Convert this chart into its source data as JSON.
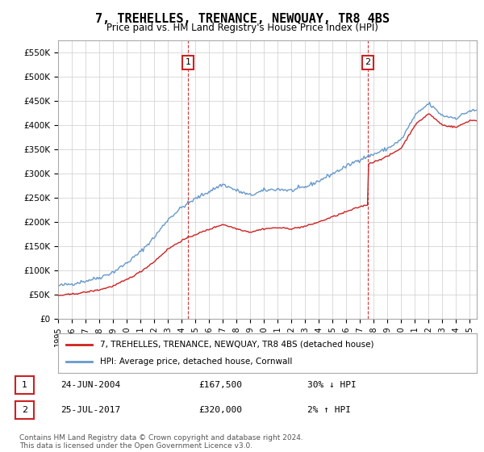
{
  "title": "7, TREHELLES, TRENANCE, NEWQUAY, TR8 4BS",
  "subtitle": "Price paid vs. HM Land Registry's House Price Index (HPI)",
  "yticks": [
    0,
    50000,
    100000,
    150000,
    200000,
    250000,
    300000,
    350000,
    400000,
    450000,
    500000,
    550000
  ],
  "ytick_labels": [
    "£0",
    "£50K",
    "£100K",
    "£150K",
    "£200K",
    "£250K",
    "£300K",
    "£350K",
    "£400K",
    "£450K",
    "£500K",
    "£550K"
  ],
  "ylim": [
    0,
    575000
  ],
  "xlim_start": 1995.0,
  "xlim_end": 2025.5,
  "xtick_years": [
    1995,
    1996,
    1997,
    1998,
    1999,
    2000,
    2001,
    2002,
    2003,
    2004,
    2005,
    2006,
    2007,
    2008,
    2009,
    2010,
    2011,
    2012,
    2013,
    2014,
    2015,
    2016,
    2017,
    2018,
    2019,
    2020,
    2021,
    2022,
    2023,
    2024,
    2025
  ],
  "hpi_color": "#6699cc",
  "price_color": "#cc2222",
  "transaction1_date": 2004.48,
  "transaction1_price": 167500,
  "transaction1_label": "1",
  "transaction2_date": 2017.56,
  "transaction2_price": 320000,
  "transaction2_label": "2",
  "legend_line1": "7, TREHELLES, TRENANCE, NEWQUAY, TR8 4BS (detached house)",
  "legend_line2": "HPI: Average price, detached house, Cornwall",
  "table_row1": [
    "1",
    "24-JUN-2004",
    "£167,500",
    "30% ↓ HPI"
  ],
  "table_row2": [
    "2",
    "25-JUL-2017",
    "£320,000",
    "2% ↑ HPI"
  ],
  "footnote": "Contains HM Land Registry data © Crown copyright and database right 2024.\nThis data is licensed under the Open Government Licence v3.0.",
  "grid_color": "#cccccc",
  "background_color": "#ffffff"
}
